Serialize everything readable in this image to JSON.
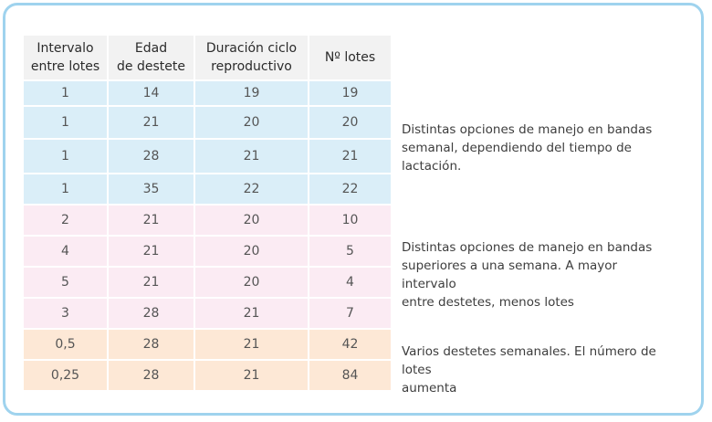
{
  "table": {
    "headers": [
      [
        "Intervalo",
        "entre lotes"
      ],
      [
        "Edad",
        "de destete"
      ],
      [
        "Duración ciclo",
        "reproductivo"
      ],
      [
        "Nº lotes"
      ]
    ],
    "rows": [
      [
        "1",
        "14",
        "19",
        "19"
      ],
      [
        "1",
        "21",
        "20",
        "20"
      ],
      [
        "1",
        "28",
        "21",
        "21"
      ],
      [
        "1",
        "35",
        "22",
        "22"
      ],
      [
        "2",
        "21",
        "20",
        "10"
      ],
      [
        "4",
        "21",
        "20",
        "5"
      ],
      [
        "5",
        "21",
        "20",
        "4"
      ],
      [
        "3",
        "28",
        "21",
        "7"
      ],
      [
        "0,5",
        "28",
        "21",
        "42"
      ],
      [
        "0,25",
        "28",
        "21",
        "84"
      ]
    ]
  },
  "notes": {
    "weekly": [
      "Distintas opciones de manejo en bandas",
      "semanal, dependiendo del tiempo de lactación."
    ],
    "above_week": [
      "Distintas opciones de manejo en bandas",
      "superiores a una semana. A mayor intervalo",
      "entre destetes, menos lotes"
    ],
    "several_weekly": [
      "Varios destetes semanales. El número de lotes",
      "aumenta"
    ]
  },
  "colors": {
    "frame_border": "#9fd3ee",
    "header_bg": "#f2f2f2",
    "group_blue": "#daeef8",
    "group_pink": "#fbebf3",
    "group_peach": "#fde8d6"
  }
}
